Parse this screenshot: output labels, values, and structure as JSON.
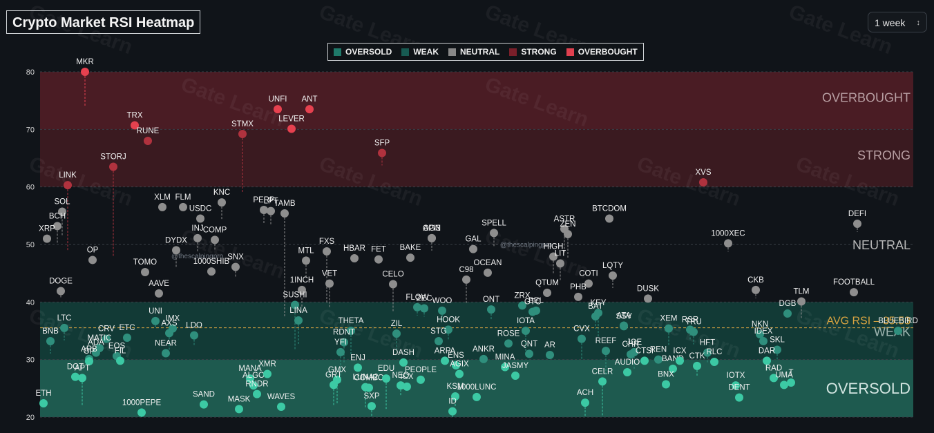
{
  "title": "Crypto Market RSI Heatmap",
  "period": {
    "selected": "1 week"
  },
  "credit": "@thescalpingpro",
  "watermark": "Gate Learn",
  "legend": [
    {
      "label": "OVERSOLD",
      "color": "#1f7a6a"
    },
    {
      "label": "WEAK",
      "color": "#175a52"
    },
    {
      "label": "NEUTRAL",
      "color": "#888888"
    },
    {
      "label": "STRONG",
      "color": "#7a1f2a"
    },
    {
      "label": "OVERBOUGHT",
      "color": "#e0404f"
    }
  ],
  "colors": {
    "oversold_band": "#1e5a4f",
    "weak_band": "#123a36",
    "strong_band": "#3a1a20",
    "overbought_band": "#4a1c24",
    "oversold_dot": "#3cc9a4",
    "weak_dot": "#2f8f7d",
    "neutral_dot": "#8e8e8e",
    "strong_dot": "#b0323e",
    "overbought_dot": "#e6414f",
    "avg_line": "#d9a441"
  },
  "chart_data": {
    "type": "scatter",
    "title": "Crypto Market RSI Heatmap",
    "ylim": [
      20,
      80
    ],
    "yticks": [
      20,
      30,
      40,
      50,
      60,
      70,
      80
    ],
    "zones": [
      {
        "label": "OVERSOLD",
        "from": 20,
        "to": 30
      },
      {
        "label": "WEAK",
        "from": 30,
        "to": 40
      },
      {
        "label": "NEUTRAL",
        "from": 40,
        "to": 60
      },
      {
        "label": "STRONG",
        "from": 60,
        "to": 70
      },
      {
        "label": "OVERBOUGHT",
        "from": 70,
        "to": 80
      }
    ],
    "avg_rsi": {
      "label": "AVG RSI",
      "value": 35.53,
      "value_text": "35.53"
    },
    "points": [
      {
        "name": "MKR",
        "y": 80.0,
        "x": 1
      },
      {
        "name": "TRX",
        "y": 70.7,
        "x": 2
      },
      {
        "name": "RUNE",
        "y": 68.0,
        "x": 3
      },
      {
        "name": "STORJ",
        "y": 63.5,
        "x": 4
      },
      {
        "name": "LINK",
        "y": 60.3,
        "x": 5
      },
      {
        "name": "STMX",
        "y": 69.2,
        "x": 6
      },
      {
        "name": "UNFI",
        "y": 73.5,
        "x": 7
      },
      {
        "name": "LEVER",
        "y": 70.1,
        "x": 8
      },
      {
        "name": "ANT",
        "y": 73.5,
        "x": 9
      },
      {
        "name": "SFP",
        "y": 65.9,
        "x": 10
      },
      {
        "name": "XVS",
        "y": 60.8,
        "x": 11
      },
      {
        "name": "SOL",
        "y": 55.7,
        "x": 12
      },
      {
        "name": "BCH",
        "y": 53.2,
        "x": 13
      },
      {
        "name": "XRP",
        "y": 51.0,
        "x": 14
      },
      {
        "name": "XLM",
        "y": 56.5,
        "x": 15
      },
      {
        "name": "FLM",
        "y": 56.5,
        "x": 16
      },
      {
        "name": "USDC",
        "y": 54.5,
        "x": 17
      },
      {
        "name": "KNC",
        "y": 57.3,
        "x": 18
      },
      {
        "name": "PERP",
        "y": 56.0,
        "x": 19
      },
      {
        "name": "LPT",
        "y": 55.8,
        "x": 20
      },
      {
        "name": "TAMB",
        "y": 55.4,
        "x": 21
      },
      {
        "name": "INJ",
        "y": 51.1,
        "x": 22
      },
      {
        "name": "COMP",
        "y": 50.8,
        "x": 23
      },
      {
        "name": "OP",
        "y": 47.3,
        "x": 24
      },
      {
        "name": "DYDX",
        "y": 49.0,
        "x": 25
      },
      {
        "name": "1000SHIB",
        "y": 45.3,
        "x": 26
      },
      {
        "name": "SNX",
        "y": 46.1,
        "x": 27
      },
      {
        "name": "TOMO",
        "y": 45.2,
        "x": 28
      },
      {
        "name": "AAVE",
        "y": 41.5,
        "x": 29
      },
      {
        "name": "DOGE",
        "y": 41.9,
        "x": 30
      },
      {
        "name": "MTL",
        "y": 47.2,
        "x": 31
      },
      {
        "name": "FXS",
        "y": 48.8,
        "x": 32
      },
      {
        "name": "HBAR",
        "y": 47.6,
        "x": 33
      },
      {
        "name": "FET",
        "y": 47.4,
        "x": 34
      },
      {
        "name": "BAKE",
        "y": 47.7,
        "x": 35
      },
      {
        "name": "OGN",
        "y": 51.1,
        "x": 36
      },
      {
        "name": "API3",
        "y": 51.1,
        "x": 37
      },
      {
        "name": "GAL",
        "y": 49.2,
        "x": 38
      },
      {
        "name": "SPELL",
        "y": 52.0,
        "x": 39
      },
      {
        "name": "OCEAN",
        "y": 45.1,
        "x": 40
      },
      {
        "name": "C98",
        "y": 43.9,
        "x": 41
      },
      {
        "name": "1INCH",
        "y": 42.1,
        "x": 42
      },
      {
        "name": "VET",
        "y": 43.2,
        "x": 43
      },
      {
        "name": "CELO",
        "y": 43.1,
        "x": 44
      },
      {
        "name": "SUSHI",
        "y": 39.5,
        "x": 45
      },
      {
        "name": "LINA",
        "y": 36.8,
        "x": 46
      },
      {
        "name": "BTCDOM",
        "y": 54.5,
        "x": 47
      },
      {
        "name": "ASTR",
        "y": 52.7,
        "x": 48
      },
      {
        "name": "ZEN",
        "y": 51.8,
        "x": 49
      },
      {
        "name": "HIGH",
        "y": 47.9,
        "x": 50
      },
      {
        "name": "LIT",
        "y": 46.7,
        "x": 51
      },
      {
        "name": "QTUM",
        "y": 41.6,
        "x": 52
      },
      {
        "name": "COTI",
        "y": 43.2,
        "x": 53
      },
      {
        "name": "PHB",
        "y": 40.9,
        "x": 54
      },
      {
        "name": "LQTY",
        "y": 44.6,
        "x": 55
      },
      {
        "name": "DUSK",
        "y": 40.6,
        "x": 56
      },
      {
        "name": "1000XEC",
        "y": 50.2,
        "x": 57
      },
      {
        "name": "DEFI",
        "y": 53.6,
        "x": 58
      },
      {
        "name": "CKB",
        "y": 42.1,
        "x": 59
      },
      {
        "name": "FOOTBALL",
        "y": 41.7,
        "x": 60
      },
      {
        "name": "TLM",
        "y": 40.1,
        "x": 61
      },
      {
        "name": "DGB",
        "y": 38.0,
        "x": 62
      },
      {
        "name": "KEY",
        "y": 38.1,
        "x": 63
      },
      {
        "name": "BAT",
        "y": 37.5,
        "x": 64
      },
      {
        "name": "SSV",
        "y": 35.8,
        "x": 65
      },
      {
        "name": "ZRX",
        "y": 39.4,
        "x": 66
      },
      {
        "name": "CELR",
        "y": 26.2,
        "x": 67
      },
      {
        "name": "LTC",
        "y": 35.5,
        "x": 68
      },
      {
        "name": "BNB",
        "y": 33.2,
        "x": 69
      },
      {
        "name": "CRV",
        "y": 33.6,
        "x": 70
      },
      {
        "name": "ETC",
        "y": 33.8,
        "x": 71
      },
      {
        "name": "MATIC",
        "y": 32.0,
        "x": 72
      },
      {
        "name": "ADA",
        "y": 31.2,
        "x": 73
      },
      {
        "name": "EOS",
        "y": 30.6,
        "x": 74
      },
      {
        "name": "FIL",
        "y": 29.8,
        "x": 75
      },
      {
        "name": "ARB",
        "y": 30.1,
        "x": 76
      },
      {
        "name": "OP2",
        "y": 29.7,
        "x": 77
      },
      {
        "name": "DOT",
        "y": 27.0,
        "x": 78
      },
      {
        "name": "APT",
        "y": 26.8,
        "x": 79
      },
      {
        "name": "UNI",
        "y": 36.7,
        "x": 80
      },
      {
        "name": "IMX",
        "y": 35.4,
        "x": 81
      },
      {
        "name": "AXS",
        "y": 34.6,
        "x": 82
      },
      {
        "name": "LDO",
        "y": 34.2,
        "x": 83
      },
      {
        "name": "NEAR",
        "y": 31.1,
        "x": 84
      },
      {
        "name": "ETH",
        "y": 22.4,
        "x": 85
      },
      {
        "name": "1000PEPE",
        "y": 20.8,
        "x": 86
      },
      {
        "name": "SAND",
        "y": 22.2,
        "x": 87
      },
      {
        "name": "MASK",
        "y": 21.4,
        "x": 88
      },
      {
        "name": "WAVES",
        "y": 21.8,
        "x": 89
      },
      {
        "name": "MANA",
        "y": 26.7,
        "x": 90
      },
      {
        "name": "ALGO",
        "y": 25.5,
        "x": 91
      },
      {
        "name": "XMR",
        "y": 27.5,
        "x": 92
      },
      {
        "name": "RNDR",
        "y": 24.0,
        "x": 93
      },
      {
        "name": "THETA",
        "y": 35.0,
        "x": 94
      },
      {
        "name": "RDNT",
        "y": 33.0,
        "x": 95
      },
      {
        "name": "YFI",
        "y": 31.3,
        "x": 96
      },
      {
        "name": "ENJ",
        "y": 28.6,
        "x": 97
      },
      {
        "name": "GMX",
        "y": 26.5,
        "x": 98
      },
      {
        "name": "GRT",
        "y": 25.6,
        "x": 99
      },
      {
        "name": "LUNA2",
        "y": 25.2,
        "x": 100
      },
      {
        "name": "COMBO",
        "y": 25.1,
        "x": 101
      },
      {
        "name": "SXP",
        "y": 21.9,
        "x": 102
      },
      {
        "name": "EDU",
        "y": 26.7,
        "x": 103
      },
      {
        "name": "ZIL",
        "y": 34.5,
        "x": 104
      },
      {
        "name": "DASH",
        "y": 29.5,
        "x": 105
      },
      {
        "name": "NEO",
        "y": 25.5,
        "x": 106
      },
      {
        "name": "ICX",
        "y": 25.3,
        "x": 107
      },
      {
        "name": "PEOPLE",
        "y": 26.5,
        "x": 108
      },
      {
        "name": "FLOW",
        "y": 39.1,
        "x": 109
      },
      {
        "name": "ZEC",
        "y": 38.9,
        "x": 110
      },
      {
        "name": "WOO",
        "y": 38.5,
        "x": 111
      },
      {
        "name": "HOOK",
        "y": 35.2,
        "x": 112
      },
      {
        "name": "STG",
        "y": 33.2,
        "x": 113
      },
      {
        "name": "ARPA",
        "y": 29.8,
        "x": 114
      },
      {
        "name": "ENS",
        "y": 29.0,
        "x": 115
      },
      {
        "name": "AGIX",
        "y": 27.5,
        "x": 116
      },
      {
        "name": "KSM",
        "y": 23.6,
        "x": 117
      },
      {
        "name": "ID",
        "y": 21.0,
        "x": 118
      },
      {
        "name": "1000LUNC",
        "y": 23.5,
        "x": 119
      },
      {
        "name": "ANKR",
        "y": 30.1,
        "x": 120
      },
      {
        "name": "MINA",
        "y": 28.7,
        "x": 121
      },
      {
        "name": "JASMY",
        "y": 27.2,
        "x": 122
      },
      {
        "name": "ROSE",
        "y": 32.8,
        "x": 123
      },
      {
        "name": "QNT",
        "y": 31.0,
        "x": 124
      },
      {
        "name": "IOTA",
        "y": 35.0,
        "x": 125
      },
      {
        "name": "ONT",
        "y": 38.7,
        "x": 126
      },
      {
        "name": "GTC",
        "y": 38.3,
        "x": 127
      },
      {
        "name": "BEL",
        "y": 38.5,
        "x": 128
      },
      {
        "name": "AR",
        "y": 30.8,
        "x": 129
      },
      {
        "name": "CVX",
        "y": 33.6,
        "x": 130
      },
      {
        "name": "REEF",
        "y": 31.5,
        "x": 131
      },
      {
        "name": "ACH",
        "y": 22.5,
        "x": 132
      },
      {
        "name": "ATA",
        "y": 35.9,
        "x": 133
      },
      {
        "name": "JOE",
        "y": 31.3,
        "x": 134
      },
      {
        "name": "CHR",
        "y": 30.9,
        "x": 135
      },
      {
        "name": "CTSI",
        "y": 29.8,
        "x": 136
      },
      {
        "name": "AUDIO",
        "y": 27.8,
        "x": 137
      },
      {
        "name": "REN",
        "y": 30.0,
        "x": 138
      },
      {
        "name": "BAND",
        "y": 28.4,
        "x": 139
      },
      {
        "name": "ICX2",
        "y": 29.8,
        "x": 140
      },
      {
        "name": "BNX",
        "y": 25.7,
        "x": 141
      },
      {
        "name": "XEM",
        "y": 35.4,
        "x": 142
      },
      {
        "name": "RSR",
        "y": 35.2,
        "x": 143
      },
      {
        "name": "TRU",
        "y": 34.8,
        "x": 144
      },
      {
        "name": "HFT",
        "y": 31.2,
        "x": 145
      },
      {
        "name": "RLC",
        "y": 29.6,
        "x": 146
      },
      {
        "name": "CTK",
        "y": 28.9,
        "x": 147
      },
      {
        "name": "IOTX",
        "y": 25.5,
        "x": 148
      },
      {
        "name": "DENT",
        "y": 23.4,
        "x": 149
      },
      {
        "name": "NKN",
        "y": 34.4,
        "x": 150
      },
      {
        "name": "IDEX",
        "y": 33.2,
        "x": 151
      },
      {
        "name": "SKL",
        "y": 31.7,
        "x": 152
      },
      {
        "name": "DAR",
        "y": 29.8,
        "x": 153
      },
      {
        "name": "RAD",
        "y": 26.8,
        "x": 154
      },
      {
        "name": "UMA",
        "y": 25.6,
        "x": 155
      },
      {
        "name": "T",
        "y": 26.0,
        "x": 156
      },
      {
        "name": "BLUEBIRD",
        "y": 35.0,
        "x": 157
      }
    ]
  }
}
